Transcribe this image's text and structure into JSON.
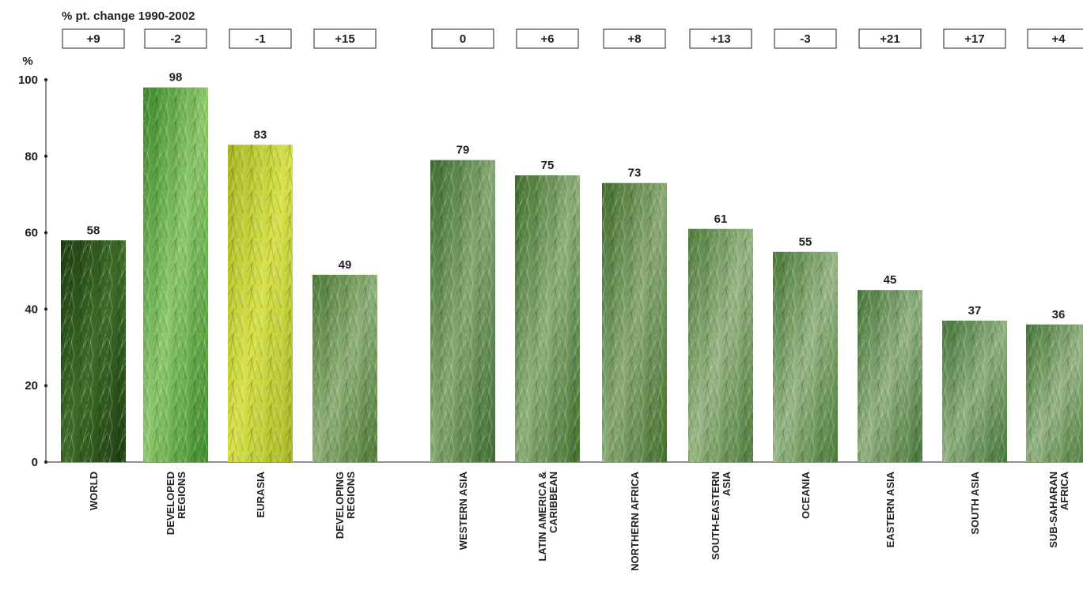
{
  "chart_data": {
    "type": "bar",
    "header": "% pt. change 1990-2002",
    "yunit": "%",
    "ylim": [
      0,
      100
    ],
    "yticks": [
      0,
      20,
      40,
      60,
      80,
      100
    ],
    "grid": false,
    "categories": [
      [
        "WORLD"
      ],
      [
        "DEVELOPED",
        "REGIONS"
      ],
      [
        "EURASIA"
      ],
      [
        "DEVELOPING",
        "REGIONS"
      ],
      [
        "WESTERN ASIA"
      ],
      [
        "LATIN AMERICA &",
        "CARIBBEAN"
      ],
      [
        "NORTHERN AFRICA"
      ],
      [
        "SOUTH-EASTERN",
        "ASIA"
      ],
      [
        "OCEANIA"
      ],
      [
        "EASTERN ASIA"
      ],
      [
        "SOUTH ASIA"
      ],
      [
        "SUB-SAHARAN",
        "AFRICA"
      ]
    ],
    "values": [
      58,
      98,
      83,
      49,
      79,
      75,
      73,
      61,
      55,
      45,
      37,
      36
    ],
    "changes": [
      "+9",
      "-2",
      "-1",
      "+15",
      "0",
      "+6",
      "+8",
      "+13",
      "-3",
      "+21",
      "+17",
      "+4"
    ],
    "bar_colors": [
      [
        "#1e3f12",
        "#3f6d28"
      ],
      [
        "#3d8a2a",
        "#8cc86a"
      ],
      [
        "#a9b825",
        "#d6e048"
      ],
      [
        "#4d7a38",
        "#8fb077"
      ],
      [
        "#3f6e30",
        "#86a870"
      ],
      [
        "#42712f",
        "#8eb07a"
      ],
      [
        "#44702f",
        "#8aaa74"
      ],
      [
        "#4f7d3c",
        "#98b684"
      ],
      [
        "#4a7a38",
        "#97b785"
      ],
      [
        "#48783a",
        "#93b282"
      ],
      [
        "#46763a",
        "#8fb07f"
      ],
      [
        "#4a7a3a",
        "#96b484"
      ]
    ]
  }
}
